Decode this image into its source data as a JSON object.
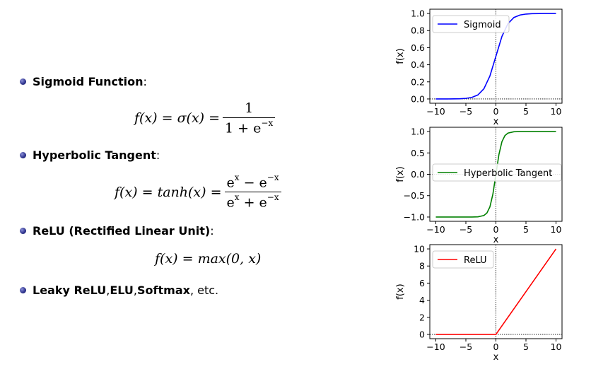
{
  "bullets": [
    {
      "bold": "Sigmoid Function",
      "rest": ":"
    },
    {
      "bold": "Hyperbolic Tangent",
      "rest": ":"
    },
    {
      "bold": "ReLU (Rectified Linear Unit)",
      "rest": ":"
    },
    {
      "bold1": "Leaky ReLU",
      "sep1": ", ",
      "bold2": "ELU",
      "sep2": ", ",
      "bold3": "Softmax",
      "rest": ", etc."
    }
  ],
  "equations": {
    "sigmoid": {
      "lhs": "f(x) = σ(x) =",
      "num": "1",
      "den_base": "1 + e",
      "den_exp": "−x"
    },
    "tanh": {
      "lhs": "f(x) = tanh(x) =",
      "num_a": "e",
      "num_a_exp": "x",
      "num_mid": " − e",
      "num_b_exp": "−x",
      "den_a": "e",
      "den_a_exp": "x",
      "den_mid": " + e",
      "den_b_exp": "−x"
    },
    "relu": {
      "text": "f(x) = max(0, x)"
    }
  },
  "chart_data": [
    {
      "type": "line",
      "title": "",
      "xlabel": "x",
      "ylabel": "f(x)",
      "xlim": [
        -11,
        11
      ],
      "ylim": [
        -0.05,
        1.05
      ],
      "xticks": [
        -10,
        -5,
        0,
        5,
        10
      ],
      "xtick_labels": [
        "−10",
        "−5",
        "0",
        "5",
        "10"
      ],
      "yticks": [
        0.0,
        0.2,
        0.4,
        0.6,
        0.8,
        1.0
      ],
      "ytick_labels": [
        "0.0",
        "0.2",
        "0.4",
        "0.6",
        "0.8",
        "1.0"
      ],
      "legend": "top-left",
      "grid": false,
      "series": [
        {
          "name": "Sigmoid",
          "color": "#0000ff",
          "x": [
            -10,
            -8,
            -6,
            -5,
            -4,
            -3,
            -2,
            -1,
            0,
            1,
            2,
            3,
            4,
            5,
            6,
            8,
            10
          ],
          "y": [
            0.0,
            0.0003,
            0.0025,
            0.0067,
            0.018,
            0.047,
            0.119,
            0.269,
            0.5,
            0.731,
            0.881,
            0.953,
            0.982,
            0.993,
            0.998,
            1.0,
            1.0
          ]
        }
      ]
    },
    {
      "type": "line",
      "title": "",
      "xlabel": "x",
      "ylabel": "f(x)",
      "xlim": [
        -11,
        11
      ],
      "ylim": [
        -1.1,
        1.1
      ],
      "xticks": [
        -10,
        -5,
        0,
        5,
        10
      ],
      "xtick_labels": [
        "−10",
        "−5",
        "0",
        "5",
        "10"
      ],
      "yticks": [
        -1.0,
        -0.5,
        0.0,
        0.5,
        1.0
      ],
      "ytick_labels": [
        "−1.0",
        "−0.5",
        "0.0",
        "0.5",
        "1.0"
      ],
      "legend": "center-right",
      "grid": false,
      "series": [
        {
          "name": "Hyperbolic Tangent",
          "color": "#008000",
          "x": [
            -10,
            -4,
            -3,
            -2,
            -1.5,
            -1,
            -0.5,
            0,
            0.5,
            1,
            1.5,
            2,
            3,
            4,
            10
          ],
          "y": [
            -1.0,
            -0.999,
            -0.995,
            -0.964,
            -0.905,
            -0.762,
            -0.462,
            0.0,
            0.462,
            0.762,
            0.905,
            0.964,
            0.995,
            0.999,
            1.0
          ]
        }
      ]
    },
    {
      "type": "line",
      "title": "",
      "xlabel": "x",
      "ylabel": "f(x)",
      "xlim": [
        -11,
        11
      ],
      "ylim": [
        -0.5,
        10.5
      ],
      "xticks": [
        -10,
        -5,
        0,
        5,
        10
      ],
      "xtick_labels": [
        "−10",
        "−5",
        "0",
        "5",
        "10"
      ],
      "yticks": [
        0,
        2,
        4,
        6,
        8,
        10
      ],
      "ytick_labels": [
        "0",
        "2",
        "4",
        "6",
        "8",
        "10"
      ],
      "legend": "top-left",
      "grid": false,
      "series": [
        {
          "name": "ReLU",
          "color": "#ff0000",
          "x": [
            -10,
            0,
            10
          ],
          "y": [
            0,
            0,
            10
          ]
        }
      ]
    }
  ]
}
